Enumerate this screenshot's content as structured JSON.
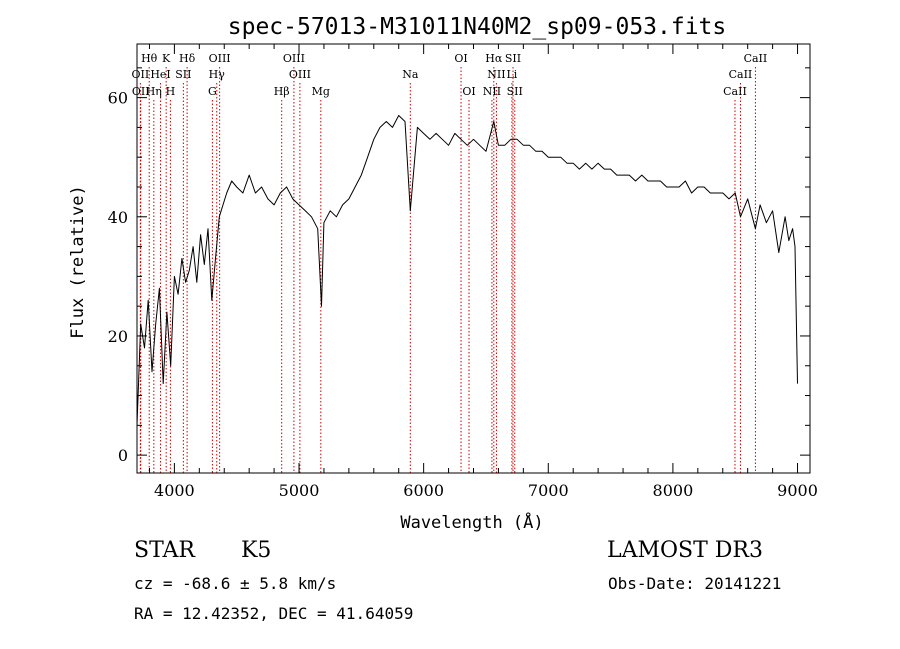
{
  "chart_data": {
    "type": "line",
    "title": "spec-57013-M31011N40M2_sp09-053.fits",
    "xlabel": "Wavelength (Å)",
    "ylabel": "Flux (relative)",
    "xlim": [
      3700,
      9100
    ],
    "ylim": [
      -3,
      69
    ],
    "xticks": [
      4000,
      5000,
      6000,
      7000,
      8000,
      9000
    ],
    "yticks": [
      0,
      20,
      40,
      60
    ],
    "line_color": "#000000",
    "marker_color": "#cc0000",
    "series": [
      {
        "name": "flux",
        "x": [
          3700,
          3730,
          3760,
          3790,
          3820,
          3850,
          3880,
          3910,
          3940,
          3970,
          4000,
          4030,
          4060,
          4090,
          4120,
          4150,
          4180,
          4210,
          4240,
          4270,
          4300,
          4330,
          4360,
          4390,
          4420,
          4460,
          4500,
          4550,
          4600,
          4650,
          4700,
          4750,
          4800,
          4850,
          4900,
          4950,
          5000,
          5050,
          5100,
          5150,
          5180,
          5200,
          5250,
          5300,
          5350,
          5400,
          5450,
          5500,
          5550,
          5600,
          5650,
          5700,
          5750,
          5800,
          5850,
          5893,
          5950,
          6000,
          6050,
          6100,
          6150,
          6200,
          6250,
          6300,
          6350,
          6400,
          6450,
          6500,
          6563,
          6600,
          6650,
          6700,
          6750,
          6800,
          6850,
          6900,
          6950,
          7000,
          7050,
          7100,
          7150,
          7200,
          7250,
          7300,
          7350,
          7400,
          7450,
          7500,
          7550,
          7600,
          7650,
          7700,
          7750,
          7800,
          7850,
          7900,
          7950,
          8000,
          8050,
          8100,
          8150,
          8200,
          8250,
          8300,
          8350,
          8400,
          8450,
          8500,
          8542,
          8600,
          8662,
          8700,
          8750,
          8800,
          8850,
          8900,
          8930,
          8960,
          8980,
          9000
        ],
        "y": [
          5,
          22,
          18,
          26,
          14,
          22,
          28,
          12,
          24,
          15,
          30,
          27,
          33,
          29,
          31,
          35,
          29,
          37,
          32,
          38,
          26,
          33,
          40,
          42,
          44,
          46,
          45,
          44,
          47,
          44,
          45,
          43,
          42,
          44,
          45,
          43,
          42,
          41,
          40,
          38,
          25,
          39,
          41,
          40,
          42,
          43,
          45,
          47,
          50,
          53,
          55,
          56,
          55,
          57,
          56,
          41,
          55,
          54,
          53,
          54,
          53,
          52,
          54,
          53,
          52,
          53,
          52,
          51,
          56,
          52,
          52,
          53,
          53,
          52,
          52,
          51,
          51,
          50,
          50,
          50,
          49,
          49,
          48,
          49,
          48,
          49,
          48,
          48,
          47,
          47,
          47,
          46,
          47,
          46,
          46,
          46,
          45,
          45,
          45,
          46,
          44,
          45,
          45,
          44,
          44,
          44,
          43,
          44,
          40,
          43,
          38,
          42,
          39,
          41,
          34,
          40,
          36,
          38,
          35,
          12
        ]
      }
    ],
    "spectral_lines": [
      {
        "label": "Hθ",
        "wavelength": 3798,
        "row": 0
      },
      {
        "label": "K",
        "wavelength": 3934,
        "row": 0
      },
      {
        "label": "Hδ",
        "wavelength": 4102,
        "row": 0
      },
      {
        "label": "OIII",
        "wavelength": 4363,
        "row": 0
      },
      {
        "label": "OIII",
        "wavelength": 4959,
        "row": 0
      },
      {
        "label": "OI",
        "wavelength": 6300,
        "row": 0
      },
      {
        "label": "Hα",
        "wavelength": 6563,
        "row": 0
      },
      {
        "label": "SII",
        "wavelength": 6717,
        "row": 0
      },
      {
        "label": "CaII",
        "wavelength": 8662,
        "row": 0
      },
      {
        "label": "OII",
        "wavelength": 3727,
        "row": 1
      },
      {
        "label": "HeI",
        "wavelength": 3889,
        "row": 1
      },
      {
        "label": "SII",
        "wavelength": 4072,
        "row": 1
      },
      {
        "label": "Hγ",
        "wavelength": 4340,
        "row": 1
      },
      {
        "label": "OIII",
        "wavelength": 5007,
        "row": 1
      },
      {
        "label": "Na",
        "wavelength": 5893,
        "row": 1
      },
      {
        "label": "NII",
        "wavelength": 6584,
        "row": 1
      },
      {
        "label": "Li",
        "wavelength": 6708,
        "row": 1
      },
      {
        "label": "CaII",
        "wavelength": 8542,
        "row": 1
      },
      {
        "label": "OII",
        "wavelength": 3730,
        "row": 2
      },
      {
        "label": "Hη",
        "wavelength": 3835,
        "row": 2
      },
      {
        "label": "H",
        "wavelength": 3968,
        "row": 2
      },
      {
        "label": "G",
        "wavelength": 4305,
        "row": 2
      },
      {
        "label": "Hβ",
        "wavelength": 4861,
        "row": 2
      },
      {
        "label": "Mg",
        "wavelength": 5175,
        "row": 2
      },
      {
        "label": "OI",
        "wavelength": 6364,
        "row": 2
      },
      {
        "label": "NII",
        "wavelength": 6548,
        "row": 2
      },
      {
        "label": "SII",
        "wavelength": 6731,
        "row": 2
      },
      {
        "label": "CaII",
        "wavelength": 8498,
        "row": 2
      }
    ]
  },
  "info": {
    "object_class": "STAR",
    "subclass": "K5",
    "survey": "LAMOST DR3",
    "cz": "cz = -68.6 ± 5.8 km/s",
    "obs_date": "Obs-Date: 20141221",
    "radec": "RA =  12.42352, DEC =  41.64059"
  }
}
